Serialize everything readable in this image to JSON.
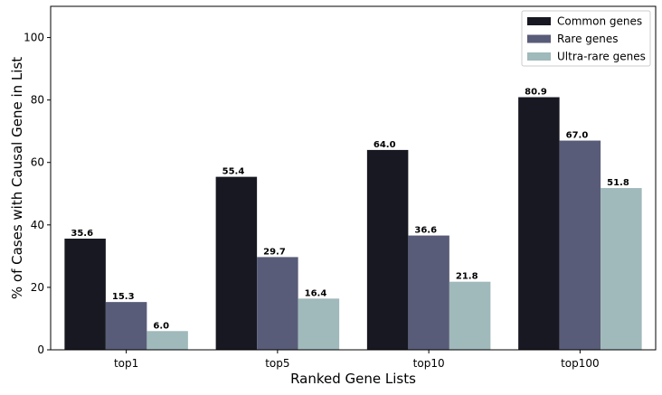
{
  "chart_data": {
    "type": "bar",
    "categories": [
      "top1",
      "top5",
      "top10",
      "top100"
    ],
    "series": [
      {
        "name": "Common genes",
        "values": [
          35.6,
          55.4,
          64.0,
          80.9
        ],
        "labels": [
          "35.6",
          "55.4",
          "64.0",
          "80.9"
        ],
        "color": "#171821"
      },
      {
        "name": "Rare genes",
        "values": [
          15.3,
          29.7,
          36.6,
          67.0
        ],
        "labels": [
          "15.3",
          "29.7",
          "36.6",
          "67.0"
        ],
        "color": "#595c78"
      },
      {
        "name": "Ultra-rare genes",
        "values": [
          6.0,
          16.4,
          21.8,
          51.8
        ],
        "labels": [
          "6.0",
          "16.4",
          "21.8",
          "51.8"
        ],
        "color": "#a0b9bb"
      }
    ],
    "title": "",
    "xlabel": "Ranked Gene Lists",
    "ylabel": "% of Cases with Causal Gene in List",
    "ylim": [
      0,
      110
    ],
    "yticks": [
      0,
      20,
      40,
      60,
      80,
      100
    ],
    "grid": false,
    "legend_position": "top-right"
  }
}
